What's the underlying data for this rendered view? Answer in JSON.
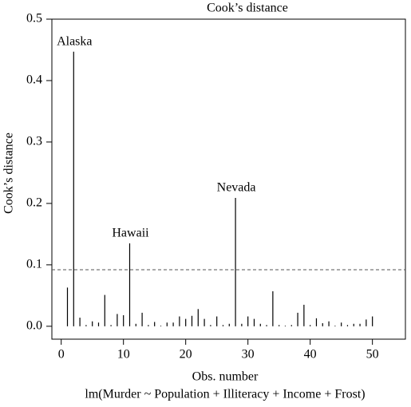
{
  "chart_data": {
    "type": "needle",
    "title": "Cook’s distance",
    "x_label": "Obs. number",
    "y_label": "Cook’s distance",
    "subtitle": "lm(Murder ~ Population + Illiteracy + Income + Frost)",
    "x": [
      1,
      2,
      3,
      4,
      5,
      6,
      7,
      8,
      9,
      10,
      11,
      12,
      13,
      14,
      15,
      16,
      17,
      18,
      19,
      20,
      21,
      22,
      23,
      24,
      25,
      26,
      27,
      28,
      29,
      30,
      31,
      32,
      33,
      34,
      35,
      36,
      37,
      38,
      39,
      40,
      41,
      42,
      43,
      44,
      45,
      46,
      47,
      48,
      49,
      50
    ],
    "values": [
      0.063,
      0.447,
      0.014,
      0.002,
      0.008,
      0.006,
      0.051,
      0.002,
      0.02,
      0.018,
      0.135,
      0.004,
      0.022,
      0.002,
      0.007,
      0.001,
      0.006,
      0.006,
      0.016,
      0.012,
      0.017,
      0.028,
      0.012,
      0.002,
      0.016,
      0.002,
      0.004,
      0.209,
      0.004,
      0.016,
      0.012,
      0.004,
      0.002,
      0.057,
      0.002,
      0.001,
      0.002,
      0.022,
      0.035,
      0.002,
      0.013,
      0.005,
      0.008,
      0.001,
      0.006,
      0.002,
      0.004,
      0.004,
      0.011,
      0.016
    ],
    "color": "#000000",
    "reference_line": 0.092,
    "annotations": [
      {
        "text": "Alaska",
        "x": 2
      },
      {
        "text": "Hawaii",
        "x": 11
      },
      {
        "text": "Nevada",
        "x": 28
      }
    ],
    "xlim": [
      -1.5,
      55.3
    ],
    "ylim": [
      -0.021,
      0.5
    ],
    "xticks": [
      0,
      10,
      20,
      30,
      40,
      50
    ],
    "yticks": [
      {
        "value": 0,
        "label": "0.0"
      },
      0.1,
      0.2,
      0.3,
      0.4,
      0.5
    ]
  }
}
